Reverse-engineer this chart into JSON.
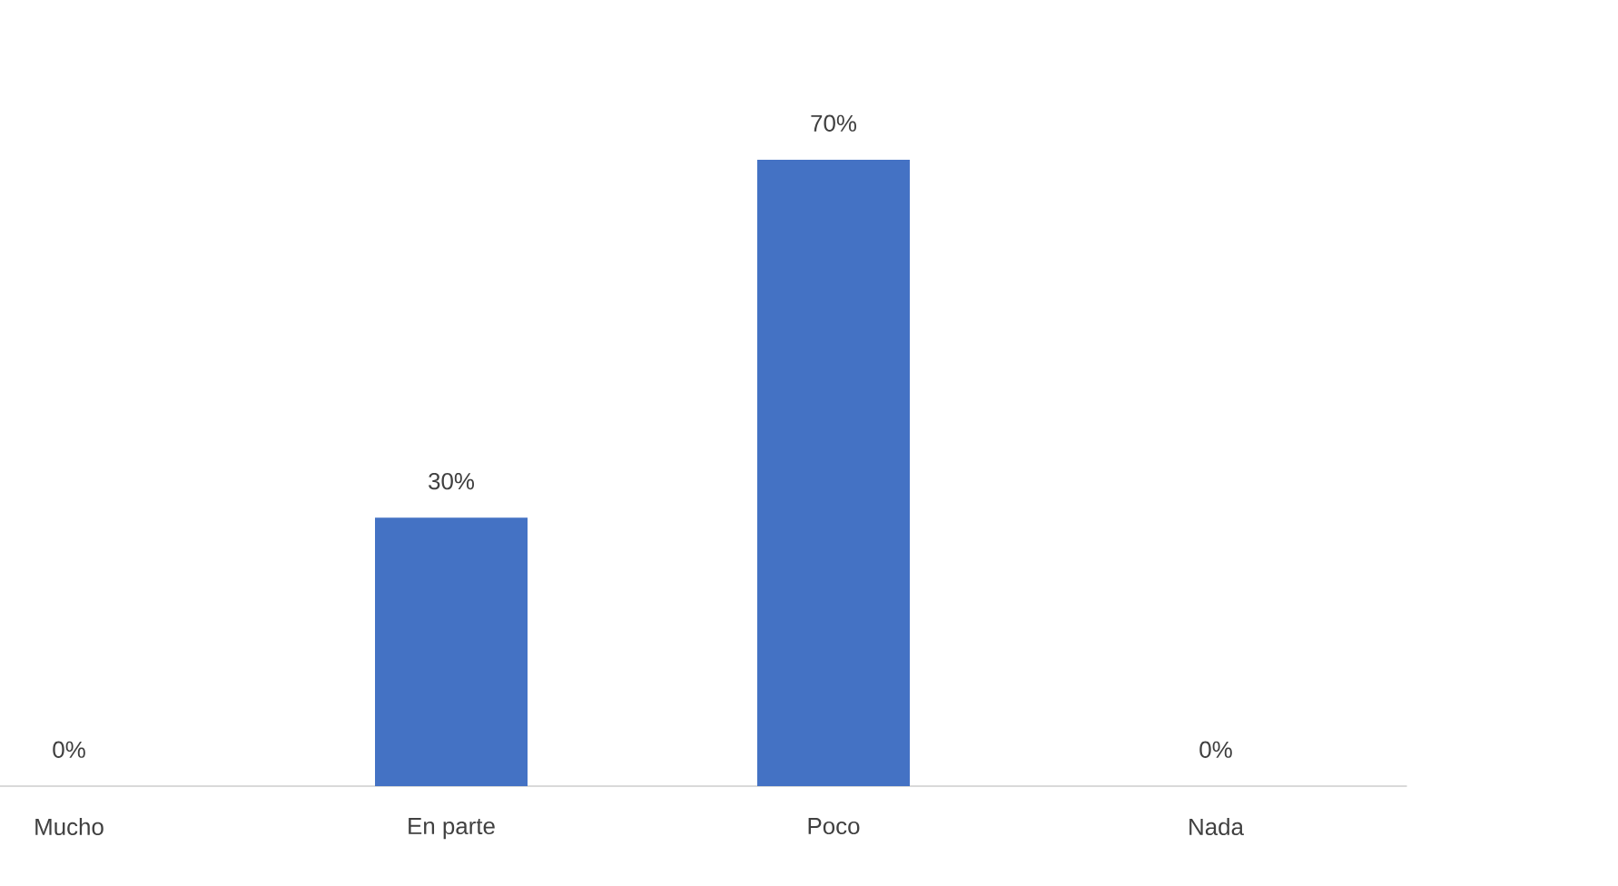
{
  "chart_data": {
    "type": "bar",
    "categories": [
      "Mucho",
      "En parte",
      "Poco",
      "Nada"
    ],
    "values": [
      0,
      30,
      70,
      0
    ],
    "value_labels": [
      "0%",
      "30%",
      "70%",
      "0%"
    ],
    "color": "#4472c4"
  }
}
